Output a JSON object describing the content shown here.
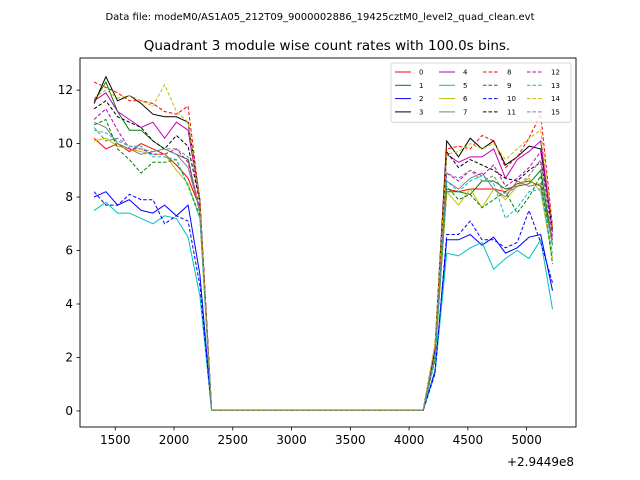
{
  "header": {
    "file_label": "Data file: modeM0/AS1A05_212T09_9000002886_19425cztM0_level2_quad_clean.evt"
  },
  "chart_data": {
    "type": "line",
    "title": "Quadrant 3 module wise count rates with 100.0s bins.",
    "xlabel": "",
    "ylabel": "",
    "x_offset_label": "+2.9449e8",
    "xlim": [
      1200,
      5420
    ],
    "ylim": [
      -0.6,
      13.2
    ],
    "xticks": [
      1500,
      2000,
      2500,
      3000,
      3500,
      4000,
      4500,
      5000
    ],
    "yticks": [
      0,
      2,
      4,
      6,
      8,
      10,
      12
    ],
    "grid": false,
    "legend_position": "top-right",
    "x": [
      1320,
      1420,
      1520,
      1620,
      1720,
      1820,
      1920,
      2020,
      2120,
      2220,
      2320,
      2420,
      2520,
      2620,
      2720,
      2820,
      2920,
      3020,
      3120,
      3220,
      3320,
      3420,
      3520,
      3620,
      3720,
      3820,
      3920,
      4020,
      4120,
      4220,
      4320,
      4420,
      4520,
      4620,
      4720,
      4820,
      4920,
      5020,
      5120,
      5220
    ],
    "series": [
      {
        "name": "0",
        "color": "#ff0000",
        "dash": false,
        "values": [
          10.2,
          9.8,
          10.0,
          9.7,
          10.0,
          9.8,
          9.6,
          9.2,
          8.7,
          7.6,
          0.02,
          0.02,
          0.02,
          0.02,
          0.02,
          0.02,
          0.02,
          0.02,
          0.02,
          0.02,
          0.02,
          0.02,
          0.02,
          0.02,
          0.02,
          0.02,
          0.02,
          0.02,
          0.03,
          2.2,
          8.3,
          8.2,
          8.3,
          8.3,
          8.3,
          8.2,
          8.5,
          8.6,
          8.4,
          6.4
        ]
      },
      {
        "name": "1",
        "color": "#008000",
        "dash": false,
        "values": [
          11.6,
          12.3,
          11.2,
          10.5,
          10.5,
          10.1,
          9.8,
          9.6,
          9.4,
          7.4,
          0.02,
          0.02,
          0.02,
          0.02,
          0.02,
          0.02,
          0.02,
          0.02,
          0.02,
          0.02,
          0.02,
          0.02,
          0.02,
          0.02,
          0.02,
          0.02,
          0.02,
          0.02,
          0.03,
          2.0,
          8.2,
          8.2,
          8.1,
          8.6,
          8.6,
          8.3,
          8.4,
          8.5,
          9.0,
          6.2
        ]
      },
      {
        "name": "2",
        "color": "#0000ff",
        "dash": false,
        "values": [
          8.0,
          8.2,
          7.7,
          7.9,
          7.5,
          7.4,
          7.7,
          7.3,
          7.7,
          5.1,
          0.02,
          0.02,
          0.02,
          0.02,
          0.02,
          0.02,
          0.02,
          0.02,
          0.02,
          0.02,
          0.02,
          0.02,
          0.02,
          0.02,
          0.02,
          0.02,
          0.02,
          0.02,
          0.02,
          1.5,
          6.4,
          6.4,
          6.6,
          6.2,
          6.5,
          5.9,
          6.1,
          6.5,
          6.6,
          4.5
        ]
      },
      {
        "name": "3",
        "color": "#000000",
        "dash": false,
        "values": [
          11.5,
          12.5,
          11.6,
          11.8,
          11.5,
          11.1,
          11.0,
          11.0,
          10.8,
          7.9,
          0.02,
          0.02,
          0.02,
          0.02,
          0.02,
          0.02,
          0.02,
          0.02,
          0.02,
          0.02,
          0.02,
          0.02,
          0.02,
          0.02,
          0.02,
          0.02,
          0.02,
          0.02,
          0.03,
          2.4,
          10.1,
          9.5,
          10.2,
          9.8,
          10.1,
          9.2,
          9.5,
          9.9,
          9.8,
          6.8
        ]
      },
      {
        "name": "4",
        "color": "#bf00bf",
        "dash": false,
        "values": [
          11.6,
          11.9,
          11.2,
          10.9,
          10.6,
          10.8,
          10.2,
          10.8,
          10.5,
          7.8,
          0.02,
          0.02,
          0.02,
          0.02,
          0.02,
          0.02,
          0.02,
          0.02,
          0.02,
          0.02,
          0.02,
          0.02,
          0.02,
          0.02,
          0.02,
          0.02,
          0.02,
          0.02,
          0.03,
          2.3,
          9.6,
          9.3,
          9.5,
          9.5,
          9.8,
          8.7,
          9.4,
          9.7,
          10.1,
          6.7
        ]
      },
      {
        "name": "5",
        "color": "#00bfbf",
        "dash": false,
        "values": [
          7.5,
          7.8,
          7.4,
          7.4,
          7.2,
          7.0,
          7.3,
          7.2,
          6.5,
          4.3,
          0.02,
          0.02,
          0.02,
          0.02,
          0.02,
          0.02,
          0.02,
          0.02,
          0.02,
          0.02,
          0.02,
          0.02,
          0.02,
          0.02,
          0.02,
          0.02,
          0.02,
          0.02,
          0.02,
          1.4,
          5.9,
          5.8,
          6.1,
          6.3,
          5.3,
          5.7,
          6.0,
          5.7,
          6.4,
          3.8
        ]
      },
      {
        "name": "6",
        "color": "#bfbf00",
        "dash": false,
        "values": [
          10.1,
          10.2,
          9.9,
          9.8,
          9.7,
          9.6,
          9.6,
          9.0,
          8.5,
          7.2,
          0.02,
          0.02,
          0.02,
          0.02,
          0.02,
          0.02,
          0.02,
          0.02,
          0.02,
          0.02,
          0.02,
          0.02,
          0.02,
          0.02,
          0.02,
          0.02,
          0.02,
          0.02,
          0.03,
          2.0,
          8.2,
          7.7,
          8.3,
          7.6,
          8.3,
          7.9,
          8.4,
          8.7,
          8.2,
          5.7
        ]
      },
      {
        "name": "7",
        "color": "#808080",
        "dash": false,
        "values": [
          10.8,
          10.6,
          10.0,
          9.8,
          9.6,
          9.7,
          9.8,
          9.6,
          9.1,
          7.5,
          0.02,
          0.02,
          0.02,
          0.02,
          0.02,
          0.02,
          0.02,
          0.02,
          0.02,
          0.02,
          0.02,
          0.02,
          0.02,
          0.02,
          0.02,
          0.02,
          0.02,
          0.02,
          0.03,
          2.1,
          8.6,
          8.3,
          8.7,
          8.9,
          8.3,
          8.0,
          8.6,
          8.4,
          8.5,
          6.2
        ]
      },
      {
        "name": "8",
        "color": "#ff0000",
        "dash": true,
        "values": [
          12.3,
          12.1,
          11.9,
          11.6,
          11.6,
          11.5,
          11.2,
          11.1,
          11.4,
          7.8,
          0.02,
          0.02,
          0.02,
          0.02,
          0.02,
          0.02,
          0.02,
          0.02,
          0.02,
          0.02,
          0.02,
          0.02,
          0.02,
          0.02,
          0.02,
          0.02,
          0.02,
          0.02,
          0.03,
          2.4,
          9.8,
          9.9,
          9.8,
          10.3,
          10.1,
          9.1,
          9.5,
          10.2,
          11.1,
          6.9
        ]
      },
      {
        "name": "9",
        "color": "#008000",
        "dash": true,
        "values": [
          10.7,
          10.9,
          9.8,
          9.4,
          8.9,
          9.3,
          9.3,
          9.4,
          8.4,
          7.3,
          0.02,
          0.02,
          0.02,
          0.02,
          0.02,
          0.02,
          0.02,
          0.02,
          0.02,
          0.02,
          0.02,
          0.02,
          0.02,
          0.02,
          0.02,
          0.02,
          0.02,
          0.02,
          0.03,
          1.9,
          8.4,
          7.9,
          8.1,
          7.6,
          7.9,
          8.2,
          7.4,
          8.0,
          8.8,
          5.5
        ]
      },
      {
        "name": "10",
        "color": "#0000ff",
        "dash": true,
        "values": [
          8.2,
          7.7,
          7.7,
          8.1,
          7.9,
          7.9,
          7.0,
          7.3,
          7.1,
          4.7,
          0.02,
          0.02,
          0.02,
          0.02,
          0.02,
          0.02,
          0.02,
          0.02,
          0.02,
          0.02,
          0.02,
          0.02,
          0.02,
          0.02,
          0.02,
          0.02,
          0.02,
          0.02,
          0.02,
          1.4,
          6.6,
          6.6,
          7.1,
          6.4,
          6.4,
          6.1,
          6.3,
          7.5,
          6.3,
          4.8
        ]
      },
      {
        "name": "11",
        "color": "#000000",
        "dash": true,
        "values": [
          11.3,
          11.6,
          11.0,
          10.8,
          10.6,
          10.1,
          9.8,
          10.3,
          9.9,
          7.8,
          0.02,
          0.02,
          0.02,
          0.02,
          0.02,
          0.02,
          0.02,
          0.02,
          0.02,
          0.02,
          0.02,
          0.02,
          0.02,
          0.02,
          0.02,
          0.02,
          0.02,
          0.02,
          0.03,
          2.2,
          9.7,
          9.1,
          9.4,
          9.2,
          9.0,
          8.7,
          8.6,
          9.0,
          9.3,
          6.9
        ]
      },
      {
        "name": "12",
        "color": "#bf00bf",
        "dash": true,
        "values": [
          10.9,
          11.3,
          10.5,
          9.8,
          9.8,
          9.6,
          9.6,
          9.8,
          9.3,
          7.6,
          0.02,
          0.02,
          0.02,
          0.02,
          0.02,
          0.02,
          0.02,
          0.02,
          0.02,
          0.02,
          0.02,
          0.02,
          0.02,
          0.02,
          0.02,
          0.02,
          0.02,
          0.02,
          0.03,
          2.1,
          8.9,
          8.6,
          9.0,
          8.8,
          9.2,
          8.4,
          8.7,
          9.1,
          9.7,
          6.5
        ]
      },
      {
        "name": "13",
        "color": "#00bfbf",
        "dash": true,
        "values": [
          10.5,
          10.4,
          10.1,
          9.9,
          9.9,
          9.5,
          9.5,
          9.4,
          8.4,
          7.2,
          0.02,
          0.02,
          0.02,
          0.02,
          0.02,
          0.02,
          0.02,
          0.02,
          0.02,
          0.02,
          0.02,
          0.02,
          0.02,
          0.02,
          0.02,
          0.02,
          0.02,
          0.02,
          0.03,
          2.0,
          8.6,
          8.2,
          8.6,
          8.8,
          8.5,
          7.2,
          7.6,
          8.2,
          8.3,
          5.9
        ]
      },
      {
        "name": "14",
        "color": "#bfbf00",
        "dash": true,
        "values": [
          11.7,
          12.0,
          11.7,
          11.8,
          11.6,
          11.4,
          12.2,
          11.2,
          10.8,
          7.8,
          0.02,
          0.02,
          0.02,
          0.02,
          0.02,
          0.02,
          0.02,
          0.02,
          0.02,
          0.02,
          0.02,
          0.02,
          0.02,
          0.02,
          0.02,
          0.02,
          0.02,
          0.02,
          0.03,
          2.5,
          9.6,
          9.7,
          10.0,
          9.8,
          10.0,
          9.4,
          9.8,
          10.2,
          10.5,
          6.9
        ]
      },
      {
        "name": "15",
        "color": "#808080",
        "dash": true,
        "values": [
          10.6,
          10.1,
          10.2,
          9.9,
          9.8,
          9.7,
          9.8,
          9.8,
          9.5,
          7.4,
          0.02,
          0.02,
          0.02,
          0.02,
          0.02,
          0.02,
          0.02,
          0.02,
          0.02,
          0.02,
          0.02,
          0.02,
          0.02,
          0.02,
          0.02,
          0.02,
          0.02,
          0.02,
          0.03,
          2.2,
          8.9,
          8.7,
          9.0,
          8.6,
          8.8,
          8.1,
          8.4,
          8.8,
          9.4,
          6.3
        ]
      }
    ]
  }
}
